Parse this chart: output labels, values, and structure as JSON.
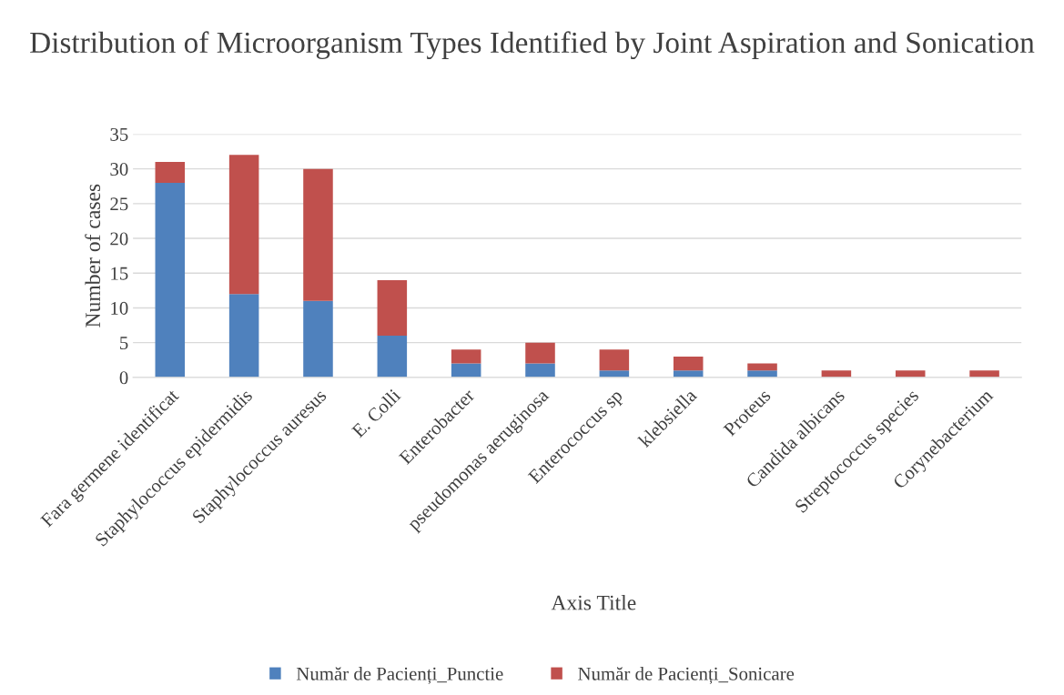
{
  "chart_data": {
    "type": "bar",
    "title": "Distribution of Microorganism Types Identified by Joint Aspiration and Sonication",
    "xlabel": "Axis Title",
    "ylabel": "Number of cases",
    "categories": [
      "Fara germene identificat",
      "Staphylococcus epidermidis",
      "Staphylococcus auresus",
      "E. Colli",
      "Enterobacter",
      "pseudomonas aeruginosa",
      "Enterococcus sp",
      "klebsiella",
      "Proteus",
      "Candida albicans",
      "Streptococcus species",
      "Corynebacterium"
    ],
    "stacked": true,
    "series": [
      {
        "name": "Număr de Pacienți_Punctie",
        "color": "#4f81bd",
        "values": [
          28,
          12,
          11,
          6,
          2,
          2,
          1,
          1,
          1,
          0,
          0,
          0
        ]
      },
      {
        "name": "Număr de Pacienți_Sonicare",
        "color": "#c0504d",
        "values": [
          3,
          20,
          19,
          8,
          2,
          3,
          3,
          2,
          1,
          1,
          1,
          1
        ]
      }
    ],
    "ylim": [
      0,
      35
    ],
    "yticks": [
      0,
      5,
      10,
      15,
      20,
      25,
      30,
      35
    ],
    "grid": "y",
    "legend": "bottom"
  }
}
